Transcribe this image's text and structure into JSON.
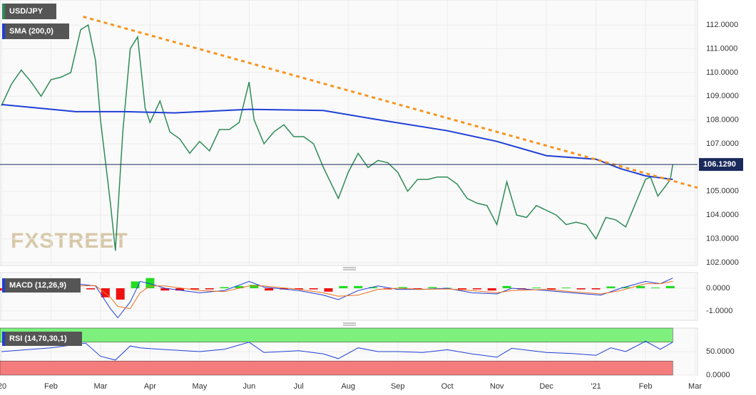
{
  "watermark": "FXSTREET",
  "chart_data": [
    {
      "type": "line",
      "title": "USD/JPY",
      "xlim": [
        0,
        14.05
      ],
      "xticks": [
        {
          "value": 0,
          "label": "'20"
        },
        {
          "value": 1,
          "label": "Feb"
        },
        {
          "value": 2,
          "label": "Mar"
        },
        {
          "value": 3,
          "label": "Apr"
        },
        {
          "value": 4,
          "label": "May"
        },
        {
          "value": 5,
          "label": "Jun"
        },
        {
          "value": 6,
          "label": "Jul"
        },
        {
          "value": 7,
          "label": "Aug"
        },
        {
          "value": 8,
          "label": "Sep"
        },
        {
          "value": 9,
          "label": "Oct"
        },
        {
          "value": 10,
          "label": "Nov"
        },
        {
          "value": 11,
          "label": "Dec"
        },
        {
          "value": 12,
          "label": "'21"
        },
        {
          "value": 13,
          "label": "Feb"
        },
        {
          "value": 14,
          "label": "Mar"
        }
      ],
      "ylim": [
        101.88,
        113.05
      ],
      "yticks": [
        {
          "value": 102,
          "label": "102.0000"
        },
        {
          "value": 103,
          "label": "103.0000"
        },
        {
          "value": 104,
          "label": "104.0000"
        },
        {
          "value": 105,
          "label": "105.0000"
        },
        {
          "value": 106,
          "label": "106.0000"
        },
        {
          "value": 107,
          "label": "107.0000"
        },
        {
          "value": 108,
          "label": "108.0000"
        },
        {
          "value": 109,
          "label": "109.0000"
        },
        {
          "value": 110,
          "label": "110.0000"
        },
        {
          "value": 111,
          "label": "111.0000"
        },
        {
          "value": 112,
          "label": "112.0000"
        }
      ],
      "grid": true,
      "series": [
        {
          "name": "USD/JPY",
          "color": "#2e8b57",
          "x": [
            0,
            0.2,
            0.4,
            0.6,
            0.8,
            1.0,
            1.2,
            1.4,
            1.6,
            1.75,
            1.9,
            2.0,
            2.2,
            2.3,
            2.45,
            2.6,
            2.75,
            2.9,
            3.0,
            3.2,
            3.4,
            3.6,
            3.8,
            4.0,
            4.2,
            4.4,
            4.6,
            4.8,
            5.0,
            5.1,
            5.3,
            5.5,
            5.7,
            5.9,
            6.1,
            6.3,
            6.5,
            6.8,
            7.0,
            7.2,
            7.4,
            7.6,
            7.8,
            8.0,
            8.2,
            8.4,
            8.6,
            8.8,
            9.0,
            9.2,
            9.4,
            9.6,
            9.8,
            10.0,
            10.2,
            10.4,
            10.6,
            10.8,
            11.0,
            11.2,
            11.4,
            11.6,
            11.8,
            12.0,
            12.2,
            12.4,
            12.6,
            12.8,
            13.0,
            13.1,
            13.25,
            13.4,
            13.5,
            13.55
          ],
          "values": [
            108.6,
            109.5,
            110.1,
            109.6,
            109.0,
            109.7,
            109.8,
            110.0,
            111.8,
            112.0,
            110.5,
            108.0,
            104.5,
            102.5,
            107.5,
            111.0,
            111.5,
            108.5,
            107.9,
            108.8,
            107.5,
            107.2,
            106.6,
            107.1,
            106.7,
            107.6,
            107.6,
            107.9,
            109.6,
            108.0,
            107.0,
            107.5,
            107.8,
            107.3,
            107.3,
            107.0,
            106.0,
            104.7,
            105.8,
            106.6,
            106.0,
            106.3,
            106.2,
            105.8,
            105.0,
            105.5,
            105.5,
            105.6,
            105.6,
            105.3,
            104.7,
            104.5,
            104.4,
            103.6,
            105.4,
            104.0,
            103.9,
            104.4,
            104.2,
            104.0,
            103.6,
            103.7,
            103.6,
            103.0,
            103.9,
            103.8,
            103.5,
            104.5,
            105.5,
            105.6,
            104.8,
            105.2,
            105.5,
            106.13
          ]
        },
        {
          "name": "SMA (200,0)",
          "color": "#1f3fd6",
          "x": [
            0,
            1.5,
            2.5,
            3.5,
            5.0,
            6.5,
            7.5,
            9.0,
            10.0,
            11.0,
            12.0,
            12.5,
            13.0,
            13.55
          ],
          "values": [
            108.65,
            108.35,
            108.35,
            108.3,
            108.45,
            108.4,
            108.05,
            107.55,
            107.1,
            106.5,
            106.35,
            105.95,
            105.65,
            105.5
          ]
        }
      ],
      "trendline": {
        "color": "#f7941d",
        "x": [
          1.65,
          14.05
        ],
        "values": [
          112.35,
          105.15
        ]
      },
      "last_price": {
        "value": 106.129,
        "label": "106.1290"
      }
    },
    {
      "type": "macd",
      "title": "MACD (12,26,9)",
      "ylim": [
        -1.41,
        0.69
      ],
      "yticks": [
        {
          "value": 0,
          "label": "0.0000"
        },
        {
          "value": -1,
          "label": "-1.0000"
        }
      ],
      "up_color": "#22dd22",
      "down_color": "#e11",
      "series": [
        {
          "color": "#1f3fd6",
          "x": [
            0,
            1,
            1.5,
            1.9,
            2.2,
            2.35,
            2.6,
            2.8,
            3.0,
            3.3,
            4,
            4.5,
            5.0,
            5.3,
            6,
            6.5,
            6.8,
            7.2,
            7.6,
            8,
            8.5,
            9,
            9.5,
            10,
            10.3,
            11,
            11.5,
            12.1,
            12.5,
            13,
            13.3,
            13.55
          ],
          "values": [
            -0.05,
            0,
            0.2,
            0.1,
            -0.9,
            -1.3,
            -0.6,
            0.3,
            0.2,
            0.0,
            -0.2,
            -0.1,
            0.3,
            0.05,
            -0.1,
            -0.3,
            -0.5,
            -0.1,
            0.1,
            -0.05,
            -0.05,
            0.0,
            -0.2,
            -0.25,
            0.0,
            -0.1,
            -0.2,
            -0.3,
            0.0,
            0.3,
            0.2,
            0.45
          ]
        },
        {
          "color": "#f07020",
          "x": [
            0,
            1,
            1.5,
            1.9,
            2.2,
            2.35,
            2.6,
            2.8,
            3.0,
            3.3,
            4,
            4.5,
            5.0,
            5.3,
            6,
            6.5,
            6.8,
            7.2,
            7.6,
            8,
            8.5,
            9,
            9.5,
            10,
            10.3,
            11,
            11.5,
            12.1,
            12.5,
            13,
            13.3,
            13.55
          ],
          "values": [
            -0.05,
            -0.02,
            0.1,
            0.12,
            -0.4,
            -0.8,
            -0.9,
            -0.2,
            0.1,
            0.1,
            -0.1,
            -0.15,
            0.1,
            0.1,
            -0.05,
            -0.2,
            -0.35,
            -0.3,
            -0.05,
            0.0,
            -0.05,
            -0.03,
            -0.1,
            -0.2,
            -0.1,
            -0.05,
            -0.15,
            -0.25,
            -0.1,
            0.2,
            0.2,
            0.3
          ]
        }
      ],
      "histogram": {
        "x": [
          0,
          0.3,
          0.6,
          0.9,
          1.2,
          1.5,
          1.8,
          2.1,
          2.4,
          2.7,
          3.0,
          3.3,
          3.6,
          3.9,
          4.2,
          4.5,
          4.8,
          5.1,
          5.4,
          5.7,
          6.0,
          6.3,
          6.6,
          6.9,
          7.2,
          7.5,
          7.8,
          8.1,
          8.4,
          8.7,
          9.0,
          9.3,
          9.6,
          9.9,
          10.2,
          10.5,
          10.8,
          11.1,
          11.4,
          11.7,
          12.0,
          12.3,
          12.6,
          12.9,
          13.2,
          13.5
        ],
        "values": [
          -0.1,
          -0.05,
          0.05,
          -0.1,
          0.05,
          0.1,
          -0.05,
          -0.4,
          -0.5,
          0.3,
          0.45,
          -0.1,
          -0.1,
          -0.05,
          -0.05,
          0.05,
          0.1,
          0.15,
          -0.1,
          -0.05,
          -0.05,
          -0.05,
          -0.15,
          0.1,
          0.1,
          0.05,
          -0.05,
          0.05,
          -0.05,
          0.05,
          0.02,
          -0.05,
          -0.05,
          -0.1,
          0.1,
          -0.05,
          0.03,
          -0.05,
          0.03,
          -0.05,
          -0.05,
          0.08,
          0.05,
          0.1,
          0.03,
          0.1
        ]
      }
    },
    {
      "type": "rsi",
      "title": "RSI (14,70,30,1)",
      "ylim": [
        0,
        100
      ],
      "yticks": [
        {
          "value": 0,
          "label": "0.0000"
        },
        {
          "value": 50,
          "label": "50.0000"
        }
      ],
      "overbought": 70,
      "oversold": 30,
      "overbought_color": "#7df07d",
      "oversold_color": "#f47c7c",
      "series": [
        {
          "color": "#1f3fd6",
          "x": [
            0,
            1,
            1.7,
            2.0,
            2.3,
            2.6,
            2.8,
            3.2,
            4,
            4.5,
            5,
            5.3,
            6,
            6.5,
            6.8,
            7.2,
            7.6,
            8,
            8.5,
            9,
            9.5,
            10,
            10.3,
            11,
            11.5,
            12,
            12.3,
            12.6,
            13,
            13.3,
            13.55
          ],
          "values": [
            50,
            58,
            68,
            40,
            32,
            62,
            58,
            55,
            50,
            55,
            70,
            48,
            52,
            45,
            35,
            58,
            50,
            50,
            48,
            54,
            45,
            38,
            57,
            48,
            46,
            42,
            58,
            50,
            72,
            55,
            70
          ]
        }
      ]
    }
  ]
}
